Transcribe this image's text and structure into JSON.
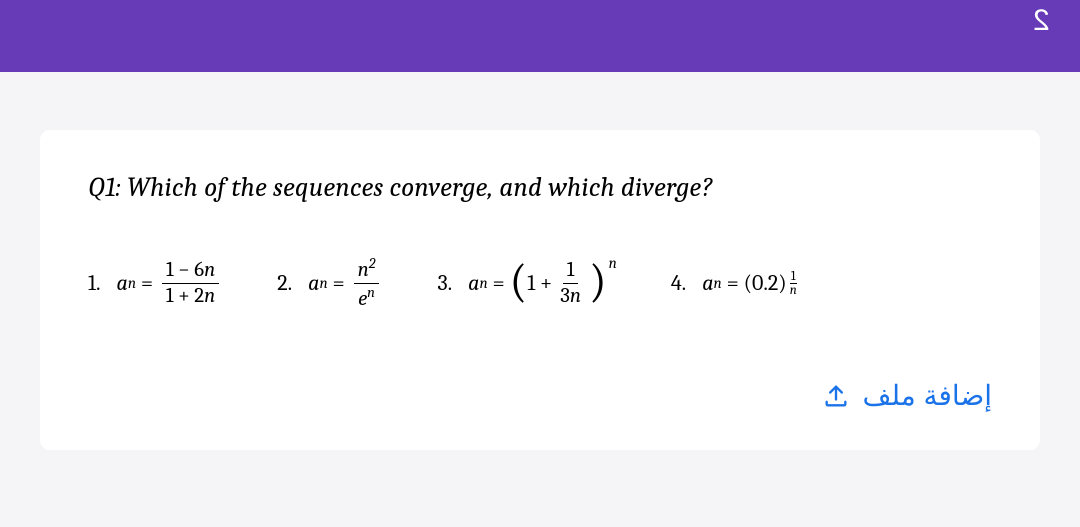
{
  "topbar": {
    "background": "#673ab7",
    "page_indicator": "2",
    "indicator_color": "#ffffff"
  },
  "card": {
    "background": "#ffffff",
    "title": "Q1: Which of the sequences converge, and which diverge?",
    "title_fontsize": 27,
    "title_style": "italic"
  },
  "answers": [
    {
      "number": "1.",
      "type": "fraction",
      "lhs_var": "a",
      "lhs_sub": "n",
      "numerator": "1 − 6n",
      "denominator": "1 + 2n"
    },
    {
      "number": "2.",
      "type": "fraction",
      "lhs_var": "a",
      "lhs_sub": "n",
      "numerator_base": "n",
      "numerator_sup": "2",
      "denominator_base": "e",
      "denominator_sup": "n"
    },
    {
      "number": "3.",
      "type": "paren_power",
      "lhs_var": "a",
      "lhs_sub": "n",
      "inner_left": "1 +",
      "inner_frac_top": "1",
      "inner_frac_bot": "3n",
      "outer_exp": "n"
    },
    {
      "number": "4.",
      "type": "power_frac_exp",
      "lhs_var": "a",
      "lhs_sub": "n",
      "base": "(0.2)",
      "exp_top": "1",
      "exp_bot": "n"
    }
  ],
  "upload": {
    "label": "إضافة ملف",
    "color": "#1a73e8",
    "icon": "upload-icon"
  }
}
